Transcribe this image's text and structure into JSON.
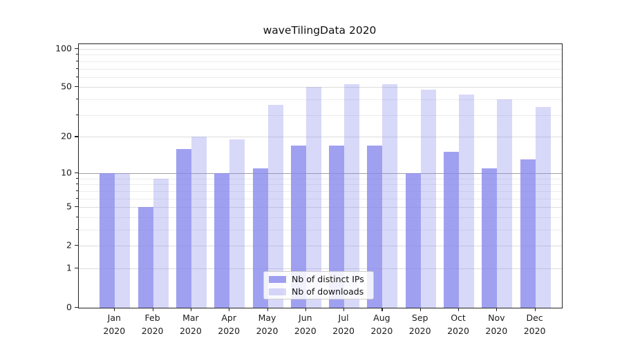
{
  "title": "waveTilingData 2020",
  "chart_data": {
    "type": "bar",
    "title": "waveTilingData 2020",
    "categories": [
      "Jan 2020",
      "Feb 2020",
      "Mar 2020",
      "Apr 2020",
      "May 2020",
      "Jun 2020",
      "Jul 2020",
      "Aug 2020",
      "Sep 2020",
      "Oct 2020",
      "Nov 2020",
      "Dec 2020"
    ],
    "series": [
      {
        "name": "Nb of distinct IPs",
        "color": "#8888ee",
        "alpha": 0.8,
        "values": [
          10,
          5,
          16,
          10,
          11,
          17,
          17,
          17,
          10,
          15,
          11,
          13
        ]
      },
      {
        "name": "Nb of downloads",
        "color": "#8888ee",
        "alpha": 0.33,
        "values": [
          10,
          9,
          20,
          19,
          36,
          50,
          53,
          53,
          48,
          44,
          40,
          35
        ]
      }
    ],
    "xlabel": "",
    "ylabel": "",
    "y_scale": "log10(1+x)",
    "ylim": [
      0,
      109
    ],
    "y_ticks_major": [
      0,
      1,
      2,
      5,
      10,
      20,
      50,
      100
    ],
    "y_ticks_minor": [
      3,
      4,
      6,
      7,
      8,
      9,
      30,
      40,
      60,
      70,
      80,
      90
    ],
    "emphasized_gridline": 10,
    "grid": true,
    "legend_position": "lower center",
    "grid_major_color": "#dcdcdc",
    "grid_minor_color": "#ececec",
    "grid_emph_color": "#a0a0a0"
  }
}
